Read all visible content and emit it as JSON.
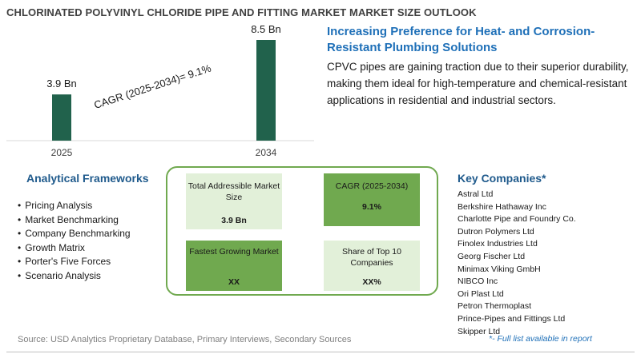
{
  "title": "CHLORINATED POLYVINYL CHLORIDE PIPE AND FITTING MARKET MARKET SIZE OUTLOOK",
  "chart_data": {
    "type": "bar",
    "categories": [
      "2025",
      "2034"
    ],
    "values": [
      3.9,
      8.5
    ],
    "value_labels": [
      "3.9 Bn",
      "8.5 Bn"
    ],
    "annotation": "CAGR (2025-2034)=   9.1%",
    "bar_color": "#21624c",
    "grid": false
  },
  "headline": "Increasing Preference for Heat- and Corrosion-Resistant Plumbing Solutions",
  "description": "CPVC pipes are gaining traction due to their superior durability, making them ideal for high-temperature and chemical-resistant applications in residential and industrial sectors.",
  "frameworks": {
    "title": "Analytical Frameworks",
    "items": [
      "Pricing Analysis",
      "Market Benchmarking",
      "Company Benchmarking",
      "Growth Matrix",
      "Porter's Five Forces",
      "Scenario Analysis"
    ]
  },
  "metrics": [
    {
      "label": "Total Addressible Market Size",
      "value": "3.9 Bn"
    },
    {
      "label": "CAGR (2025-2034)",
      "value": "9.1%"
    },
    {
      "label": "Fastest Growing Market",
      "value": "XX"
    },
    {
      "label": "Share of Top 10 Companies",
      "value": "XX%"
    }
  ],
  "companies": {
    "title": "Key Companies*",
    "items": [
      "Astral Ltd",
      "Berkshire Hathaway Inc",
      "Charlotte Pipe and Foundry Co.",
      "Dutron Polymers Ltd",
      "Finolex Industries Ltd",
      "Georg Fischer Ltd",
      "Minimax Viking GmbH",
      "NIBCO Inc",
      "Ori Plast Ltd",
      "Petron Thermoplast",
      "Prince-Pipes and Fittings Ltd",
      "Skipper Ltd"
    ],
    "note": "*- Full list available in report"
  },
  "source": "Source: USD Analytics Proprietary Database, Primary Interviews, Secondary Sources",
  "colors": {
    "accent_green": "#70a94f",
    "light_green": "#e2f0d9",
    "headline_blue": "#1f70b8",
    "bar": "#21624c"
  }
}
